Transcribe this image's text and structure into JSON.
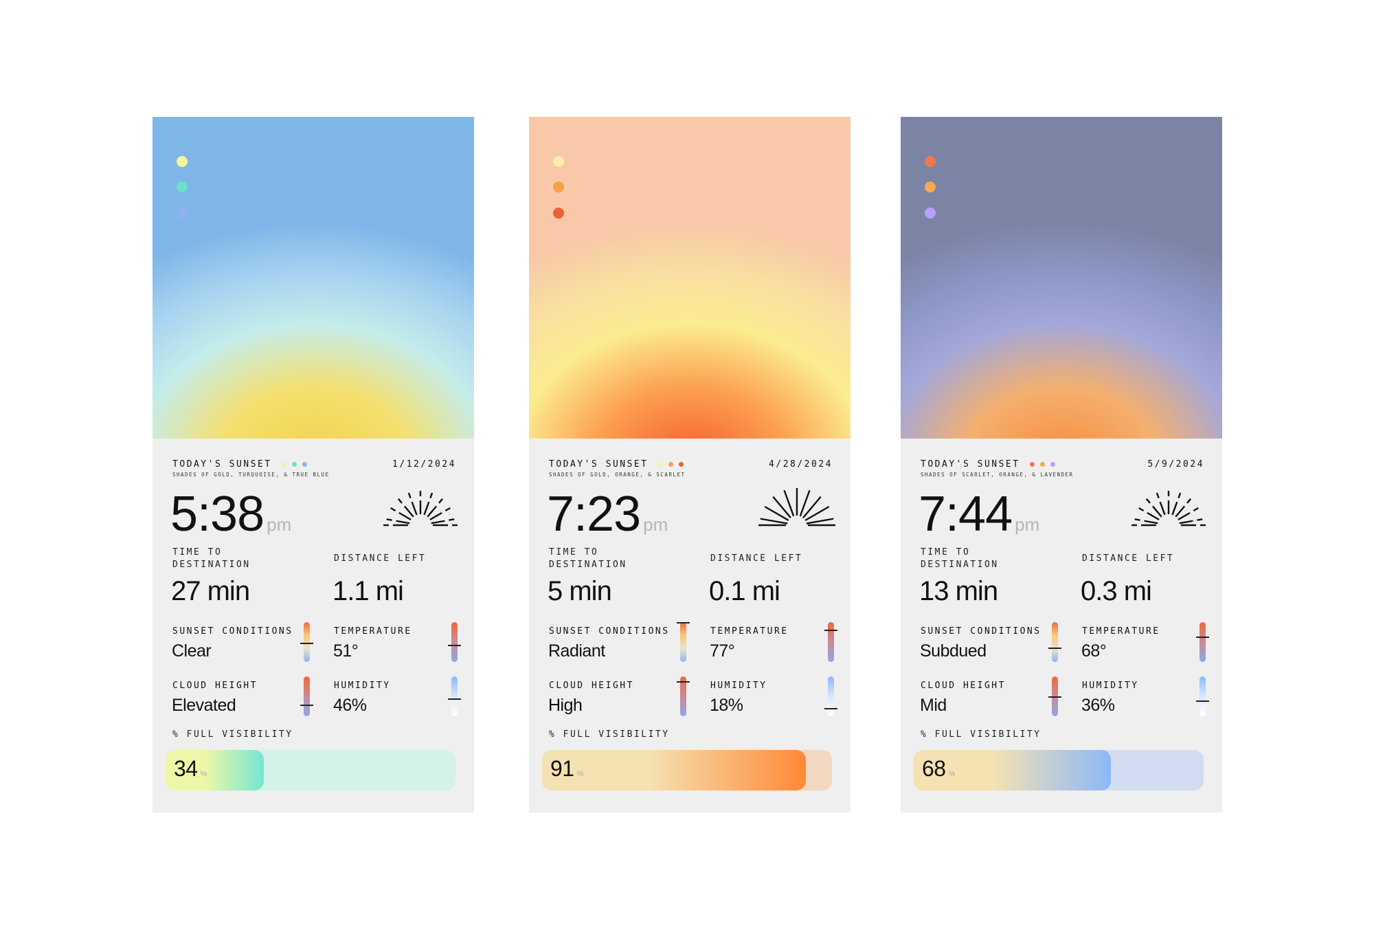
{
  "cards": [
    {
      "sky_gradient": [
        "#7fb6e8",
        "#a8d4f0",
        "#c4ecea",
        "#f4e070",
        "#f2d248"
      ],
      "swatches": [
        "#f6f2a0",
        "#6ee0c8",
        "#8fb2f2"
      ],
      "title": "TODAY'S SUNSET",
      "subtitle": "SHADES OF GOLD, TURQUOISE, & TRUE BLUE",
      "date": "1/12/2024",
      "time": "5:38",
      "meridiem": "pm",
      "sun_icon_style": "dashed",
      "time_label": "TIME TO DESTINATION",
      "time_value": "27 min",
      "distance_label": "DISTANCE LEFT",
      "distance_value": "1.1 mi",
      "stats": [
        {
          "label": "SUNSET CONDITIONS",
          "value": "Clear",
          "level": 0.47,
          "gauge": "conditions"
        },
        {
          "label": "TEMPERATURE",
          "value": "51°",
          "level": 0.41,
          "gauge": "temperature"
        },
        {
          "label": "CLOUD HEIGHT",
          "value": "Elevated",
          "level": 0.27,
          "gauge": "cloud"
        },
        {
          "label": "HUMIDITY",
          "value": "46%",
          "level": 0.42,
          "gauge": "humidity"
        }
      ],
      "visibility_label": "% FULL VISIBILITY",
      "visibility": "34",
      "visibility_unit": "%",
      "bar_colors": {
        "from": "#eef7a8",
        "to": "#74e6d2",
        "track": "#d4f2ea"
      }
    },
    {
      "sky_gradient": [
        "#f8c8a8",
        "#f9e0a0",
        "#fbec90",
        "#fca050",
        "#f65a2c"
      ],
      "swatches": [
        "#f8f0a8",
        "#f8a048",
        "#f06034"
      ],
      "title": "TODAY'S SUNSET",
      "subtitle": "SHADES OF GOLD, ORANGE, & SCARLET",
      "date": "4/28/2024",
      "time": "7:23",
      "meridiem": "pm",
      "sun_icon_style": "solid",
      "time_label": "TIME TO DESTINATION",
      "time_value": "5 min",
      "distance_label": "DISTANCE LEFT",
      "distance_value": "0.1 mi",
      "stats": [
        {
          "label": "SUNSET CONDITIONS",
          "value": "Radiant",
          "level": 1.0,
          "gauge": "conditions"
        },
        {
          "label": "TEMPERATURE",
          "value": "77°",
          "level": 0.8,
          "gauge": "temperature"
        },
        {
          "label": "CLOUD HEIGHT",
          "value": "High",
          "level": 0.87,
          "gauge": "cloud"
        },
        {
          "label": "HUMIDITY",
          "value": "18%",
          "level": 0.18,
          "gauge": "humidity"
        }
      ],
      "visibility_label": "% FULL VISIBILITY",
      "visibility": "91",
      "visibility_unit": "%",
      "bar_colors": {
        "from": "#f5e2b2",
        "to": "#ff8836",
        "track": "#f2d8c0"
      }
    },
    {
      "sky_gradient": [
        "#7c84a6",
        "#8e98c8",
        "#a4a8d8",
        "#f4b070",
        "#f88a38"
      ],
      "swatches": [
        "#f07848",
        "#f8a850",
        "#b8a0f8"
      ],
      "title": "TODAY'S SUNSET",
      "subtitle": "SHADES OF SCARLET, ORANGE, & LAVENDER",
      "date": "5/9/2024",
      "time": "7:44",
      "meridiem": "pm",
      "sun_icon_style": "dashed",
      "time_label": "TIME TO DESTINATION",
      "time_value": "13 min",
      "distance_label": "DISTANCE LEFT",
      "distance_value": "0.3 mi",
      "stats": [
        {
          "label": "SUNSET CONDITIONS",
          "value": "Subdued",
          "level": 0.34,
          "gauge": "conditions"
        },
        {
          "label": "TEMPERATURE",
          "value": "68°",
          "level": 0.62,
          "gauge": "temperature"
        },
        {
          "label": "CLOUD HEIGHT",
          "value": "Mid",
          "level": 0.49,
          "gauge": "cloud"
        },
        {
          "label": "HUMIDITY",
          "value": "36%",
          "level": 0.38,
          "gauge": "humidity"
        }
      ],
      "visibility_label": "% FULL VISIBILITY",
      "visibility": "68",
      "visibility_unit": "%",
      "bar_colors": {
        "from": "#f5e2b2",
        "to": "#8cb8f8",
        "track": "#d2dcf0"
      }
    }
  ],
  "gauge_gradients": {
    "conditions": [
      "#f06a3a",
      "#f8c880",
      "#e8e4c8",
      "#8cb4f0"
    ],
    "temperature": [
      "#f06a3a",
      "#c88a98",
      "#8ea8e8"
    ],
    "cloud": [
      "#f06a3a",
      "#c88a98",
      "#8ea8e8"
    ],
    "humidity": [
      "#8ab8f8",
      "#d8e8fc",
      "#ffffff"
    ]
  }
}
